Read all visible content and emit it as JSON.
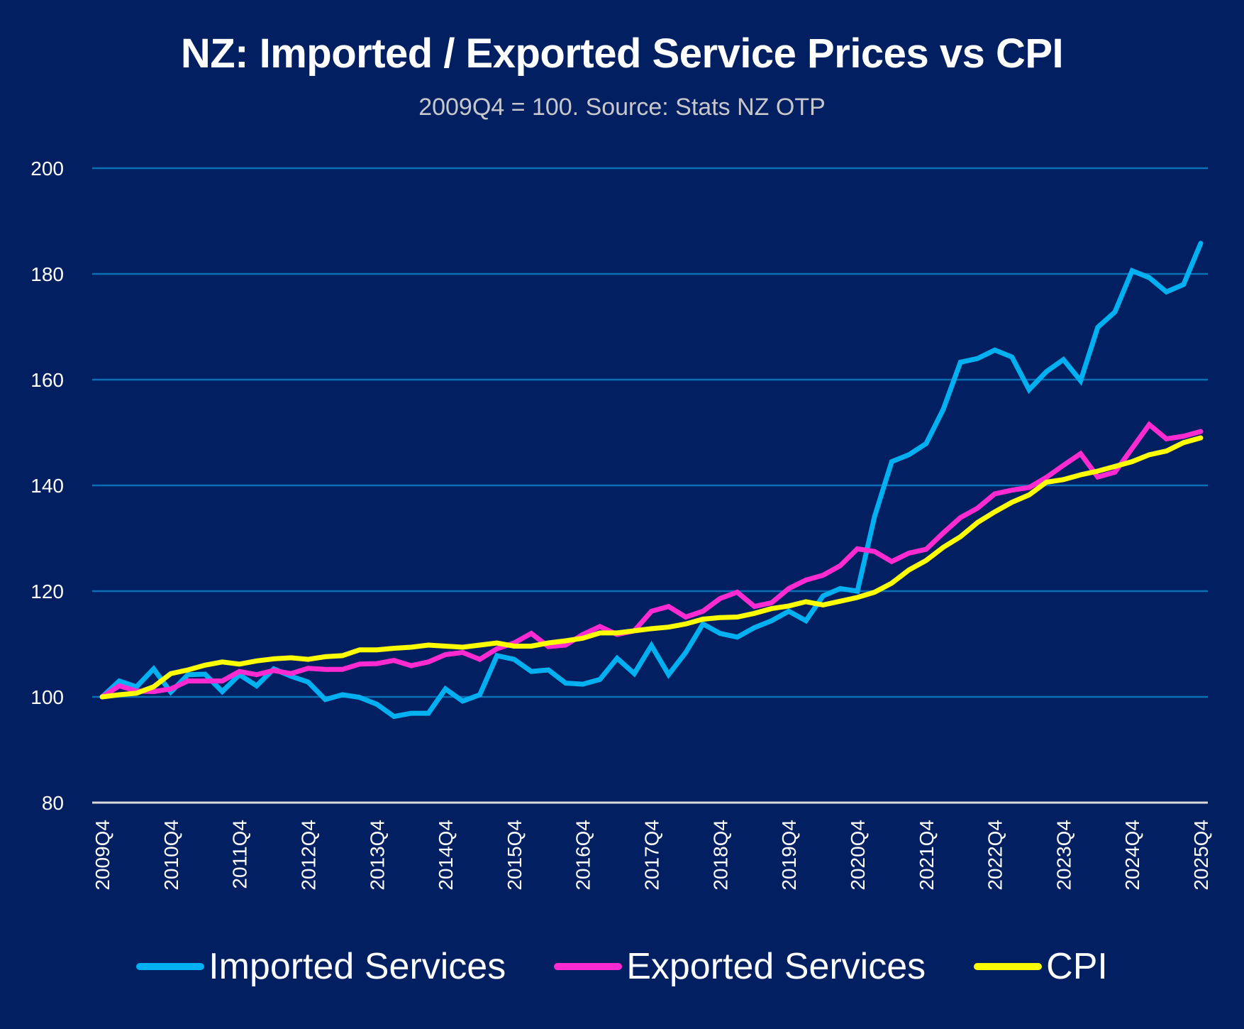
{
  "chart_data": {
    "type": "line",
    "title": "NZ: Imported / Exported Service Prices vs CPI",
    "subtitle": "2009Q4 = 100. Source: Stats NZ OTP",
    "xlabel": "",
    "ylabel": "",
    "ylim": [
      80,
      200
    ],
    "yticks": [
      80,
      100,
      120,
      140,
      160,
      180,
      200
    ],
    "grid": true,
    "legend_position": "bottom",
    "x": [
      "2009Q4",
      "2010Q1",
      "2010Q2",
      "2010Q3",
      "2010Q4",
      "2011Q1",
      "2011Q2",
      "2011Q3",
      "2011Q4",
      "2012Q1",
      "2012Q2",
      "2012Q3",
      "2012Q4",
      "2013Q1",
      "2013Q2",
      "2013Q3",
      "2013Q4",
      "2014Q1",
      "2014Q2",
      "2014Q3",
      "2014Q4",
      "2015Q1",
      "2015Q2",
      "2015Q3",
      "2015Q4",
      "2016Q1",
      "2016Q2",
      "2016Q3",
      "2016Q4",
      "2017Q1",
      "2017Q2",
      "2017Q3",
      "2017Q4",
      "2018Q1",
      "2018Q2",
      "2018Q3",
      "2018Q4",
      "2019Q1",
      "2019Q2",
      "2019Q3",
      "2019Q4",
      "2020Q1",
      "2020Q2",
      "2020Q3",
      "2020Q4",
      "2021Q1",
      "2021Q2",
      "2021Q3",
      "2021Q4",
      "2022Q1",
      "2022Q2",
      "2022Q3",
      "2022Q4",
      "2023Q1",
      "2023Q2",
      "2023Q3",
      "2023Q4",
      "2024Q1",
      "2024Q2",
      "2024Q3",
      "2024Q4",
      "2025Q1",
      "2025Q2",
      "2025Q3",
      "2025Q4"
    ],
    "xtick_labels": [
      "2009Q4",
      "2010Q4",
      "2011Q4",
      "2012Q4",
      "2013Q4",
      "2014Q4",
      "2015Q4",
      "2016Q4",
      "2017Q4",
      "2018Q4",
      "2019Q4",
      "2020Q4",
      "2021Q4",
      "2022Q4",
      "2023Q4",
      "2024Q4",
      "2025Q4"
    ],
    "series": [
      {
        "name": "Imported Services",
        "color": "#00B0F0",
        "values": [
          100,
          103.0,
          101.9,
          105.3,
          100.9,
          104.2,
          104.3,
          101.0,
          104.2,
          102.1,
          105.3,
          103.9,
          102.8,
          99.5,
          100.4,
          99.9,
          98.6,
          96.3,
          96.9,
          96.9,
          101.5,
          99.2,
          100.4,
          107.8,
          107.1,
          104.8,
          105.1,
          102.6,
          102.4,
          103.3,
          107.3,
          104.4,
          109.7,
          104.2,
          108.4,
          113.8,
          112.0,
          111.3,
          113.1,
          114.4,
          116.2,
          114.4,
          119.1,
          120.5,
          120.0,
          134.1,
          144.5,
          145.8,
          147.9,
          154.4,
          163.3,
          164.0,
          165.6,
          164.3,
          158.1,
          161.5,
          163.8,
          159.8,
          169.9,
          172.8,
          180.6,
          179.3,
          176.6,
          178.0,
          185.8
        ]
      },
      {
        "name": "Exported Services",
        "color": "#FF2BD1",
        "values": [
          100,
          102.1,
          101.1,
          101.0,
          101.5,
          103.0,
          103.0,
          103.0,
          104.8,
          104.2,
          105.0,
          104.4,
          105.4,
          105.2,
          105.2,
          106.2,
          106.3,
          106.9,
          105.9,
          106.6,
          108.0,
          108.4,
          107.1,
          109.1,
          110.2,
          112.0,
          109.5,
          109.8,
          111.8,
          113.3,
          111.8,
          112.5,
          116.2,
          117.1,
          115.1,
          116.2,
          118.6,
          119.8,
          117.1,
          117.8,
          120.5,
          122.1,
          123.0,
          124.8,
          128.0,
          127.5,
          125.6,
          127.2,
          127.9,
          131.0,
          133.9,
          135.7,
          138.4,
          139.1,
          139.6,
          141.5,
          143.8,
          146.0,
          141.6,
          142.5,
          147.0,
          151.5,
          148.8,
          149.3,
          150.2
        ]
      },
      {
        "name": "CPI",
        "color": "#FFFF00",
        "values": [
          100,
          100.4,
          100.7,
          101.9,
          104.4,
          105.1,
          106.0,
          106.6,
          106.2,
          106.8,
          107.2,
          107.4,
          107.1,
          107.6,
          107.8,
          108.9,
          108.9,
          109.2,
          109.4,
          109.8,
          109.6,
          109.4,
          109.8,
          110.2,
          109.6,
          109.6,
          110.2,
          110.6,
          111.1,
          112.1,
          112.1,
          112.5,
          112.9,
          113.2,
          113.8,
          114.7,
          115.0,
          115.1,
          115.8,
          116.7,
          117.2,
          118.0,
          117.4,
          118.1,
          118.8,
          119.8,
          121.5,
          124.0,
          125.8,
          128.3,
          130.3,
          133.0,
          135.0,
          136.8,
          138.2,
          140.6,
          141.1,
          142.0,
          142.7,
          143.6,
          144.5,
          145.8,
          146.5,
          148.1,
          149.0
        ]
      }
    ]
  }
}
